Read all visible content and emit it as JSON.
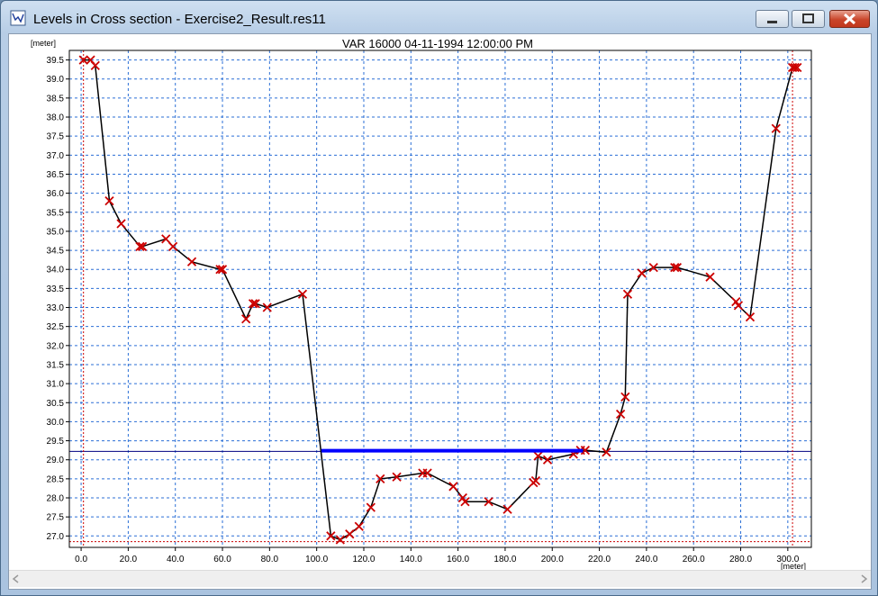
{
  "window": {
    "title": "Levels in Cross section  - Exercise2_Result.res11"
  },
  "chart_data": {
    "type": "line",
    "title": "VAR 16000  04-11-1994 12:00:00 PM",
    "xlabel": "[meter]",
    "ylabel": "[meter]",
    "xlim": [
      -5,
      310
    ],
    "ylim": [
      26.7,
      39.75
    ],
    "grid": true,
    "x_ticks": [
      0,
      20,
      40,
      60,
      80,
      100,
      120,
      140,
      160,
      180,
      200,
      220,
      240,
      260,
      280,
      300
    ],
    "x_tick_labels": [
      "0.0",
      "20.0",
      "40.0",
      "60.0",
      "80.0",
      "100.0",
      "120.0",
      "140.0",
      "160.0",
      "180.0",
      "200.0",
      "220.0",
      "240.0",
      "260.0",
      "280.0",
      "300.0"
    ],
    "y_ticks": [
      27.0,
      27.5,
      28.0,
      28.5,
      29.0,
      29.5,
      30.0,
      30.5,
      31.0,
      31.5,
      32.0,
      32.5,
      33.0,
      33.5,
      34.0,
      34.5,
      35.0,
      35.5,
      36.0,
      36.5,
      37.0,
      37.5,
      38.0,
      38.5,
      39.0,
      39.5
    ],
    "y_tick_labels": [
      "27.0",
      "27.5",
      "28.0",
      "28.5",
      "29.0",
      "29.5",
      "30.0",
      "30.5",
      "31.0",
      "31.5",
      "32.0",
      "32.5",
      "33.0",
      "33.5",
      "34.0",
      "34.5",
      "35.0",
      "35.5",
      "36.0",
      "36.5",
      "37.0",
      "37.5",
      "38.0",
      "38.5",
      "39.0",
      "39.5"
    ],
    "series": [
      {
        "role": "cross-section",
        "color": "#000000",
        "marker_color": "#cc0000",
        "marker": "x",
        "x": [
          1,
          4,
          6,
          12,
          17,
          25,
          26,
          36,
          39,
          47,
          59,
          60,
          70,
          73,
          74,
          79,
          94,
          106,
          110,
          114,
          118,
          123,
          127,
          134,
          145,
          147,
          158,
          162,
          163,
          173,
          181,
          192,
          193,
          194,
          198,
          209,
          212,
          214,
          223,
          229,
          231,
          232,
          238,
          243,
          252,
          253,
          267,
          278,
          279,
          284,
          295,
          302,
          303,
          304
        ],
        "y": [
          39.5,
          39.5,
          39.35,
          35.8,
          35.2,
          34.6,
          34.6,
          34.8,
          34.6,
          34.2,
          34.0,
          34.0,
          32.7,
          33.1,
          33.1,
          33.0,
          33.35,
          27.0,
          26.9,
          27.05,
          27.25,
          27.75,
          28.5,
          28.55,
          28.65,
          28.65,
          28.3,
          28.0,
          27.9,
          27.9,
          27.7,
          28.4,
          28.45,
          29.1,
          29.0,
          29.15,
          29.25,
          29.25,
          29.2,
          30.2,
          30.65,
          33.35,
          33.9,
          34.05,
          34.05,
          34.05,
          33.8,
          33.15,
          33.05,
          32.75,
          37.7,
          39.3,
          39.3,
          39.3
        ]
      },
      {
        "role": "water-level",
        "color": "#0000ff",
        "x": [
          102,
          213
        ],
        "y": [
          29.24,
          29.24
        ]
      }
    ],
    "reference_lines": {
      "horizontal": [
        29.22,
        26.85
      ],
      "vertical": [
        1,
        302
      ],
      "horizontal_color": "#000080",
      "dotted_color": "#cc0000"
    }
  }
}
